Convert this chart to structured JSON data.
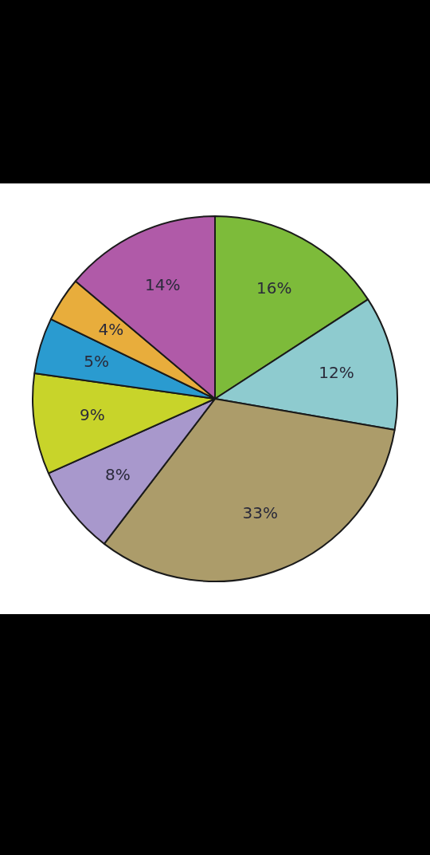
{
  "chart_data": {
    "type": "pie",
    "categories": [
      null,
      null,
      null,
      null,
      null,
      null,
      null,
      null
    ],
    "values": [
      16,
      12,
      33,
      8,
      9,
      5,
      4,
      14
    ],
    "colors": [
      "#7dbb3a",
      "#8ecbcf",
      "#ac9c6a",
      "#a898cc",
      "#c8d42a",
      "#2a9bd0",
      "#e8ad3c",
      "#b05aa8"
    ],
    "value_labels": [
      "16%",
      "12%",
      "33%",
      "8%",
      "9%",
      "5%",
      "4%",
      "14%"
    ]
  }
}
